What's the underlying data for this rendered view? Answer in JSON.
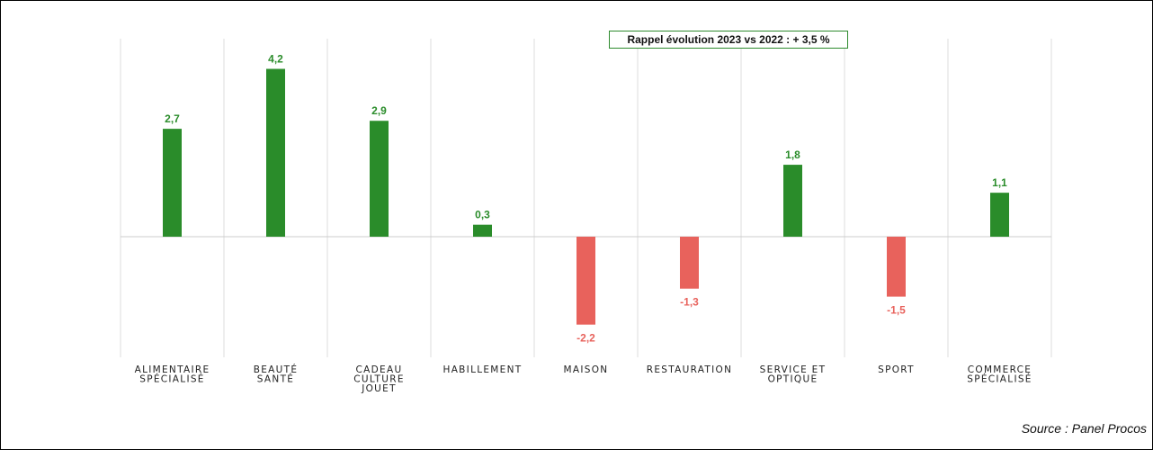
{
  "chart_data": {
    "type": "bar",
    "categories": [
      [
        "ALIMENTAIRE",
        "SPÉCIALISÉ"
      ],
      [
        "BEAUTÉ",
        "SANTÉ"
      ],
      [
        "CADEAU",
        "CULTURE",
        "JOUET"
      ],
      [
        "HABILLEMENT"
      ],
      [
        "MAISON"
      ],
      [
        "RESTAURATION"
      ],
      [
        "SERVICE ET",
        "OPTIQUE"
      ],
      [
        "SPORT"
      ],
      [
        "COMMERCE",
        "SPÉCIALISÉ"
      ]
    ],
    "values": [
      2.7,
      4.2,
      2.9,
      0.3,
      -2.2,
      -1.3,
      1.8,
      -1.5,
      1.1
    ],
    "value_labels": [
      "2,7",
      "4,2",
      "2,9",
      "0,3",
      "-2,2",
      "-1,3",
      "1,8",
      "-1,5",
      "1,1"
    ],
    "ylim": [
      -2.9,
      5.0
    ],
    "grid": "vertical",
    "colors": {
      "positive": "#2a8c2a",
      "negative": "#e8625c",
      "grid": "#dddddd",
      "baseline": "#cccccc"
    },
    "annotation": "Rappel évolution 2023 vs 2022 : + 3,5 %"
  },
  "source": "Source : Panel Procos"
}
